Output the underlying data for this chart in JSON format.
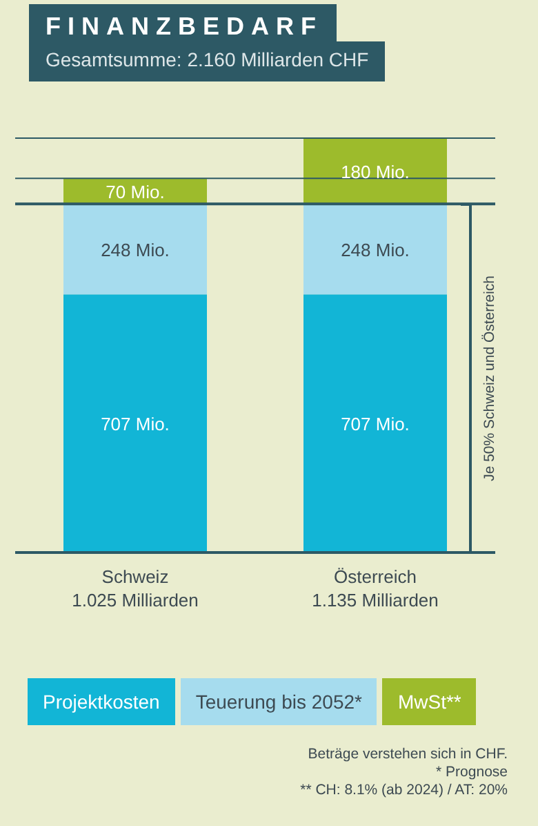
{
  "chart_data": {
    "type": "bar",
    "title": "FINANZBEDARF",
    "subtitle": "Gesamtsumme: 2.160 Milliarden CHF",
    "categories": [
      "Schweiz\n1.025 Milliarden",
      "Österreich\n1.135 Milliarden"
    ],
    "stacked": true,
    "legend": "bottom",
    "series": [
      {
        "name": "Projektkosten",
        "color": "#12b5d6",
        "values": [
          707,
          707
        ],
        "value_labels": [
          "707 Mio.",
          "707 Mio."
        ]
      },
      {
        "name": "Teuerung bis 2052*",
        "color": "#a6dcee",
        "values": [
          248,
          248
        ],
        "value_labels": [
          "248 Mio.",
          "248 Mio."
        ]
      },
      {
        "name": "MwSt**",
        "color": "#9dbb2c",
        "values": [
          70,
          180
        ],
        "value_labels": [
          "70 Mio.",
          "180 Mio."
        ]
      }
    ],
    "ref_lines": [
      {
        "axis": "y",
        "value": 955,
        "color": "#2d5965"
      },
      {
        "axis": "y",
        "value": 1025,
        "color": "#2d5965"
      },
      {
        "axis": "y",
        "value": 1135,
        "color": "#2d5965"
      }
    ],
    "annotations": [
      "Je 50% Schweiz und Österreich",
      "Beträge verstehen sich in CHF.",
      "* Prognose",
      "** CH: 8.1% (ab 2024) / AT: 20%"
    ]
  }
}
